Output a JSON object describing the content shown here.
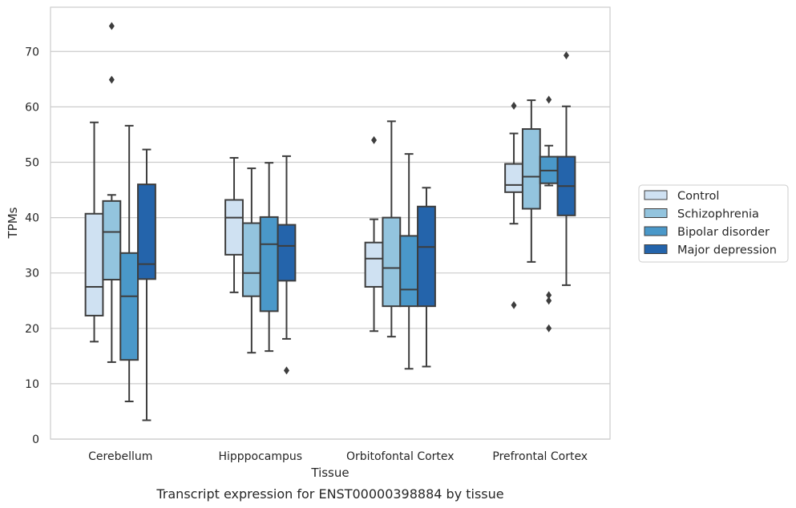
{
  "caption": "Transcript expression for ENST00000398884 by tissue",
  "chart_data": {
    "type": "box",
    "xlabel": "Tissue",
    "ylabel": "TPMs",
    "ylim": [
      0,
      78
    ],
    "yticks": [
      0,
      10,
      20,
      30,
      40,
      50,
      60,
      70
    ],
    "grid": "horizontal",
    "legend_position": "right",
    "categories": [
      "Cerebellum",
      "Hipppocampus",
      "Orbitofontal Cortex",
      "Prefrontal Cortex"
    ],
    "series": [
      {
        "name": "Control",
        "color": "#cfe1f2",
        "boxes": [
          {
            "whisker_low": 17.6,
            "q1": 22.3,
            "median": 27.5,
            "q3": 40.7,
            "whisker_high": 57.2,
            "outliers": []
          },
          {
            "whisker_low": 26.5,
            "q1": 33.3,
            "median": 40.0,
            "q3": 43.2,
            "whisker_high": 50.8,
            "outliers": []
          },
          {
            "whisker_low": 19.5,
            "q1": 27.5,
            "median": 32.6,
            "q3": 35.5,
            "whisker_high": 39.7,
            "outliers": [
              54.0
            ]
          },
          {
            "whisker_low": 38.9,
            "q1": 44.6,
            "median": 45.9,
            "q3": 49.7,
            "whisker_high": 55.2,
            "outliers": [
              24.2,
              60.2
            ]
          }
        ]
      },
      {
        "name": "Schizophrenia",
        "color": "#93c4de",
        "boxes": [
          {
            "whisker_low": 13.9,
            "q1": 28.8,
            "median": 37.4,
            "q3": 43.0,
            "whisker_high": 44.1,
            "outliers": [
              64.9,
              74.6
            ]
          },
          {
            "whisker_low": 15.6,
            "q1": 25.8,
            "median": 30.0,
            "q3": 39.0,
            "whisker_high": 48.9,
            "outliers": []
          },
          {
            "whisker_low": 18.5,
            "q1": 24.0,
            "median": 30.9,
            "q3": 40.0,
            "whisker_high": 57.4,
            "outliers": []
          },
          {
            "whisker_low": 32.0,
            "q1": 41.6,
            "median": 47.4,
            "q3": 56.0,
            "whisker_high": 61.2,
            "outliers": []
          }
        ]
      },
      {
        "name": "Bipolar disorder",
        "color": "#4a98c9",
        "boxes": [
          {
            "whisker_low": 6.8,
            "q1": 14.3,
            "median": 25.8,
            "q3": 33.6,
            "whisker_high": 56.6,
            "outliers": []
          },
          {
            "whisker_low": 15.9,
            "q1": 23.1,
            "median": 35.2,
            "q3": 40.1,
            "whisker_high": 49.9,
            "outliers": []
          },
          {
            "whisker_low": 12.7,
            "q1": 24.0,
            "median": 27.0,
            "q3": 36.7,
            "whisker_high": 51.5,
            "outliers": []
          },
          {
            "whisker_low": 45.8,
            "q1": 46.2,
            "median": 48.5,
            "q3": 51.0,
            "whisker_high": 53.0,
            "outliers": [
              20.0,
              25.0,
              26.0,
              61.3
            ]
          }
        ]
      },
      {
        "name": "Major depression",
        "color": "#2464ab",
        "boxes": [
          {
            "whisker_low": 3.4,
            "q1": 28.9,
            "median": 31.6,
            "q3": 46.0,
            "whisker_high": 52.3,
            "outliers": []
          },
          {
            "whisker_low": 18.1,
            "q1": 28.6,
            "median": 34.9,
            "q3": 38.7,
            "whisker_high": 51.1,
            "outliers": [
              12.4
            ]
          },
          {
            "whisker_low": 13.1,
            "q1": 24.0,
            "median": 34.7,
            "q3": 42.0,
            "whisker_high": 45.4,
            "outliers": []
          },
          {
            "whisker_low": 27.8,
            "q1": 40.4,
            "median": 45.7,
            "q3": 51.0,
            "whisker_high": 60.1,
            "outliers": [
              69.3
            ]
          }
        ]
      }
    ]
  }
}
